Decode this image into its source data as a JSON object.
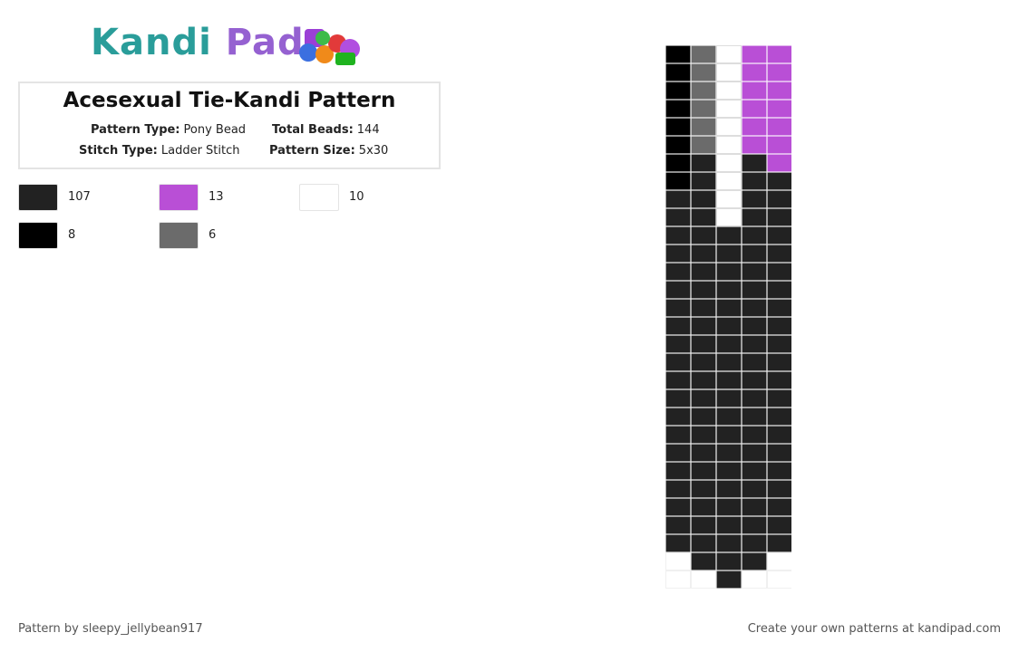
{
  "header": {
    "brand_left": "Kandi",
    "brand_right": "Pad"
  },
  "pattern": {
    "title": "Acesexual Tie-Kandi Pattern",
    "info": [
      {
        "label": "Pattern Type:",
        "value": "Pony Bead"
      },
      {
        "label": "Total Beads:",
        "value": "144"
      },
      {
        "label": "Stitch Type:",
        "value": "Ladder Stitch"
      },
      {
        "label": "Pattern Size:",
        "value": "5x30"
      }
    ],
    "palette": [
      {
        "color": "#222222",
        "count": 107
      },
      {
        "color": "#b94fd6",
        "count": 13
      },
      {
        "color": "#ffffff",
        "count": 10
      },
      {
        "color": "#000000",
        "count": 8
      },
      {
        "color": "#6b6b6b",
        "count": 6
      }
    ],
    "grid": [
      [
        3,
        4,
        2,
        1,
        1
      ],
      [
        3,
        4,
        2,
        1,
        1
      ],
      [
        3,
        4,
        2,
        1,
        1
      ],
      [
        3,
        4,
        2,
        1,
        1
      ],
      [
        3,
        4,
        2,
        1,
        1
      ],
      [
        3,
        4,
        2,
        1,
        1
      ],
      [
        3,
        0,
        2,
        0,
        1
      ],
      [
        3,
        0,
        2,
        0,
        0
      ],
      [
        0,
        0,
        2,
        0,
        0
      ],
      [
        0,
        0,
        2,
        0,
        0
      ],
      [
        0,
        0,
        0,
        0,
        0
      ],
      [
        0,
        0,
        0,
        0,
        0
      ],
      [
        0,
        0,
        0,
        0,
        0
      ],
      [
        0,
        0,
        0,
        0,
        0
      ],
      [
        0,
        0,
        0,
        0,
        0
      ],
      [
        0,
        0,
        0,
        0,
        0
      ],
      [
        0,
        0,
        0,
        0,
        0
      ],
      [
        0,
        0,
        0,
        0,
        0
      ],
      [
        0,
        0,
        0,
        0,
        0
      ],
      [
        0,
        0,
        0,
        0,
        0
      ],
      [
        0,
        0,
        0,
        0,
        0
      ],
      [
        0,
        0,
        0,
        0,
        0
      ],
      [
        0,
        0,
        0,
        0,
        0
      ],
      [
        0,
        0,
        0,
        0,
        0
      ],
      [
        0,
        0,
        0,
        0,
        0
      ],
      [
        0,
        0,
        0,
        0,
        0
      ],
      [
        0,
        0,
        0,
        0,
        0
      ],
      [
        0,
        0,
        0,
        0,
        0
      ],
      [
        null,
        0,
        0,
        0,
        null
      ],
      [
        null,
        null,
        0,
        null,
        null
      ]
    ]
  },
  "footer": {
    "left": "Pattern by sleepy_jellybean917",
    "right": "Create your own patterns at kandipad.com"
  }
}
